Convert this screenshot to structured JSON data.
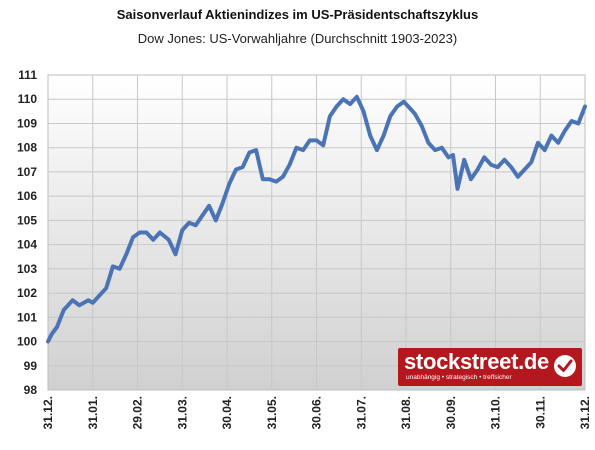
{
  "chart_data": {
    "type": "line",
    "title": "Saisonverlauf Aktienindizes im US-Präsidentschaftszyklus",
    "subtitle": "Dow Jones: US-Vorwahljahre (Durchschnitt 1903-2023)",
    "xlabel": "",
    "ylabel": "",
    "ylim": [
      98,
      111
    ],
    "yticks": [
      "98",
      "99",
      "100",
      "101",
      "102",
      "103",
      "104",
      "105",
      "106",
      "107",
      "108",
      "109",
      "110",
      "111"
    ],
    "xticks": [
      "31.12.",
      "31.01.",
      "29.02.",
      "31.03.",
      "30.04.",
      "31.05.",
      "30.06.",
      "31.07.",
      "31.08.",
      "30.09.",
      "31.10.",
      "30.11.",
      "31.12."
    ],
    "grid": true,
    "series": [
      {
        "color": "#4a74b5",
        "x": [
          0,
          0.08,
          0.2,
          0.35,
          0.55,
          0.7,
          0.9,
          1.0,
          1.1,
          1.3,
          1.45,
          1.6,
          1.75,
          1.9,
          2.05,
          2.2,
          2.35,
          2.5,
          2.7,
          2.85,
          3.0,
          3.15,
          3.3,
          3.45,
          3.6,
          3.75,
          3.9,
          4.05,
          4.2,
          4.35,
          4.5,
          4.65,
          4.8,
          4.95,
          5.1,
          5.25,
          5.4,
          5.55,
          5.7,
          5.85,
          6.0,
          6.15,
          6.3,
          6.45,
          6.6,
          6.75,
          6.9,
          7.05,
          7.2,
          7.35,
          7.5,
          7.65,
          7.8,
          7.95,
          8.1,
          8.2,
          8.35,
          8.5,
          8.65,
          8.8,
          8.95,
          9.05,
          9.15,
          9.3,
          9.45,
          9.6,
          9.75,
          9.9,
          10.05,
          10.2,
          10.35,
          10.5,
          10.65,
          10.8,
          10.95,
          11.1,
          11.25,
          11.4,
          11.55,
          11.7,
          11.85,
          12.0
        ],
        "values": [
          100.0,
          100.3,
          100.6,
          101.3,
          101.7,
          101.5,
          101.7,
          101.6,
          101.8,
          102.2,
          103.1,
          103.0,
          103.6,
          104.3,
          104.5,
          104.5,
          104.2,
          104.5,
          104.2,
          103.6,
          104.6,
          104.9,
          104.8,
          105.2,
          105.6,
          105.0,
          105.7,
          106.5,
          107.1,
          107.2,
          107.8,
          107.9,
          106.7,
          106.7,
          106.6,
          106.8,
          107.3,
          108.0,
          107.9,
          108.3,
          108.3,
          108.1,
          109.3,
          109.7,
          110.0,
          109.8,
          110.1,
          109.5,
          108.5,
          107.9,
          108.5,
          109.3,
          109.7,
          109.9,
          109.6,
          109.4,
          108.9,
          108.2,
          107.9,
          108.0,
          107.6,
          107.7,
          106.3,
          107.5,
          106.7,
          107.1,
          107.6,
          107.3,
          107.2,
          107.5,
          107.2,
          106.8,
          107.1,
          107.4,
          108.2,
          107.9,
          108.5,
          108.2,
          108.7,
          109.1,
          109.0,
          109.7
        ]
      }
    ]
  },
  "logo": {
    "name": "stockstreet.de",
    "tagline": "unabhängig • strategisch • treffsicher",
    "color": "#b5171f"
  }
}
